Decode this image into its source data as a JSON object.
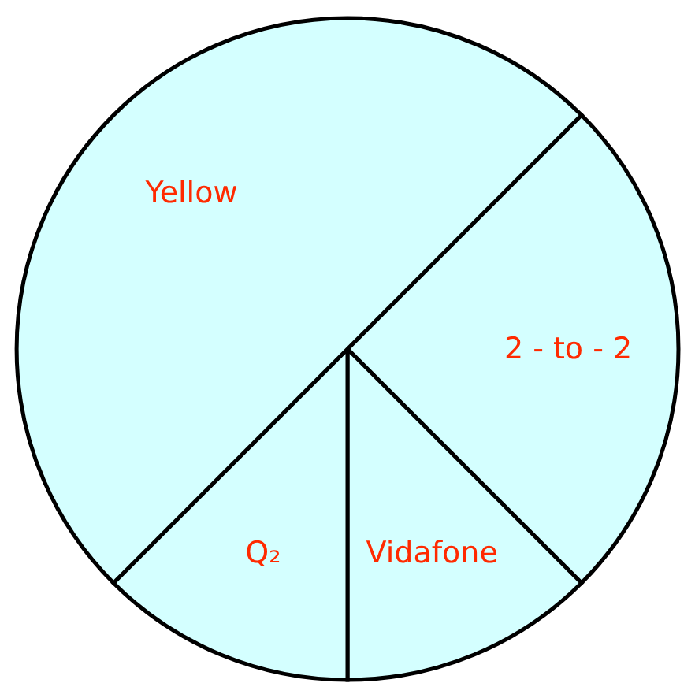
{
  "chart_data": {
    "type": "pie",
    "categories": [
      "2 - to - 2",
      "Vidafone",
      "Q₂",
      "Yellow"
    ],
    "values": [
      25,
      12.5,
      12.5,
      50
    ],
    "colors": [
      "#d4ffff",
      "#d4ffff",
      "#d4ffff",
      "#d4ffff"
    ]
  }
}
